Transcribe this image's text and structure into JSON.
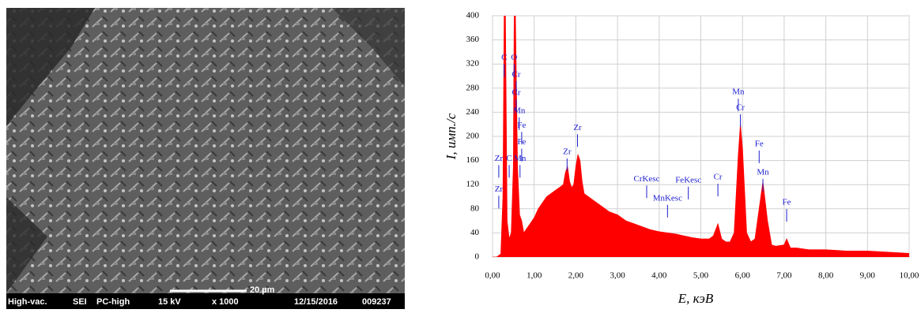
{
  "sem_image": {
    "scale_bar": "20 µm",
    "footer": [
      "High-vac.",
      "SEI",
      "PC-high",
      "15 kV",
      "x 1000",
      "12/15/2016",
      "009237"
    ]
  },
  "chart_data": {
    "type": "area",
    "x_label": "E, кэВ",
    "y_label": "I, имп./с",
    "color": "#ff0000",
    "grid": true,
    "xlim": [
      0,
      10
    ],
    "ylim": [
      0,
      400
    ],
    "xticks": [
      {
        "value": 0,
        "label": "0,00"
      },
      {
        "value": 1,
        "label": "1,00"
      },
      {
        "value": 2,
        "label": "2,00"
      },
      {
        "value": 3,
        "label": "3,00"
      },
      {
        "value": 4,
        "label": "4,00"
      },
      {
        "value": 5,
        "label": "5,00"
      },
      {
        "value": 6,
        "label": "6,00"
      },
      {
        "value": 7,
        "label": "7,00"
      },
      {
        "value": 8,
        "label": "8,00"
      },
      {
        "value": 9,
        "label": "9,00"
      },
      {
        "value": 10,
        "label": "10,00"
      }
    ],
    "yticks": [
      0,
      40,
      80,
      120,
      160,
      200,
      240,
      280,
      320,
      360,
      400
    ],
    "x": [
      0.0,
      0.1,
      0.2,
      0.25,
      0.28,
      0.31,
      0.35,
      0.4,
      0.45,
      0.5,
      0.52,
      0.55,
      0.6,
      0.65,
      0.7,
      0.75,
      0.8,
      0.9,
      1.0,
      1.1,
      1.2,
      1.3,
      1.4,
      1.5,
      1.6,
      1.7,
      1.75,
      1.8,
      1.85,
      1.9,
      1.95,
      2.0,
      2.05,
      2.1,
      2.15,
      2.2,
      2.3,
      2.4,
      2.5,
      2.6,
      2.8,
      3.0,
      3.2,
      3.4,
      3.6,
      3.8,
      4.0,
      4.2,
      4.4,
      4.6,
      4.8,
      5.0,
      5.2,
      5.3,
      5.41,
      5.5,
      5.6,
      5.7,
      5.8,
      5.9,
      5.95,
      6.0,
      6.1,
      6.2,
      6.3,
      6.4,
      6.49,
      6.6,
      6.7,
      6.8,
      7.0,
      7.06,
      7.15,
      7.3,
      7.6,
      8.0,
      8.5,
      9.0,
      9.5,
      10.0
    ],
    "values": [
      0,
      0,
      5,
      100,
      400,
      400,
      60,
      30,
      40,
      150,
      400,
      400,
      150,
      70,
      60,
      40,
      45,
      55,
      65,
      80,
      90,
      100,
      105,
      110,
      115,
      120,
      140,
      150,
      125,
      115,
      120,
      150,
      170,
      160,
      125,
      105,
      100,
      95,
      90,
      85,
      75,
      70,
      60,
      55,
      50,
      45,
      42,
      40,
      38,
      35,
      32,
      30,
      30,
      35,
      55,
      30,
      25,
      25,
      40,
      170,
      220,
      180,
      40,
      25,
      30,
      80,
      125,
      60,
      20,
      18,
      20,
      30,
      15,
      15,
      12,
      12,
      10,
      10,
      8,
      6
    ],
    "annotations": [
      {
        "text": "C",
        "x": 0.28,
        "y": 330
      },
      {
        "text": "O",
        "x": 0.52,
        "y": 330
      },
      {
        "text": "Cr",
        "x": 0.57,
        "y": 302
      },
      {
        "text": "Cr",
        "x": 0.57,
        "y": 272
      },
      {
        "text": "Mn",
        "x": 0.64,
        "y": 242
      },
      {
        "text": "Fe",
        "x": 0.7,
        "y": 218
      },
      {
        "text": "Fe",
        "x": 0.7,
        "y": 190
      },
      {
        "text": "Mn",
        "x": 0.66,
        "y": 163
      },
      {
        "text": "Zr",
        "x": 0.15,
        "y": 163
      },
      {
        "text": "C",
        "x": 0.4,
        "y": 163
      },
      {
        "text": "Zr",
        "x": 0.15,
        "y": 112
      },
      {
        "text": "Zr",
        "x": 1.79,
        "y": 174
      },
      {
        "text": "Zr",
        "x": 2.04,
        "y": 214
      },
      {
        "text": "CrKesc",
        "x": 3.7,
        "y": 129
      },
      {
        "text": "MnKesc",
        "x": 4.2,
        "y": 97
      },
      {
        "text": "FeKesc",
        "x": 4.7,
        "y": 127
      },
      {
        "text": "Cr",
        "x": 5.41,
        "y": 132
      },
      {
        "text": "Mn",
        "x": 5.9,
        "y": 273
      },
      {
        "text": "Cr",
        "x": 5.95,
        "y": 247
      },
      {
        "text": "Fe",
        "x": 6.4,
        "y": 187
      },
      {
        "text": "Mn",
        "x": 6.49,
        "y": 140
      },
      {
        "text": "Fe",
        "x": 7.06,
        "y": 90
      }
    ]
  }
}
